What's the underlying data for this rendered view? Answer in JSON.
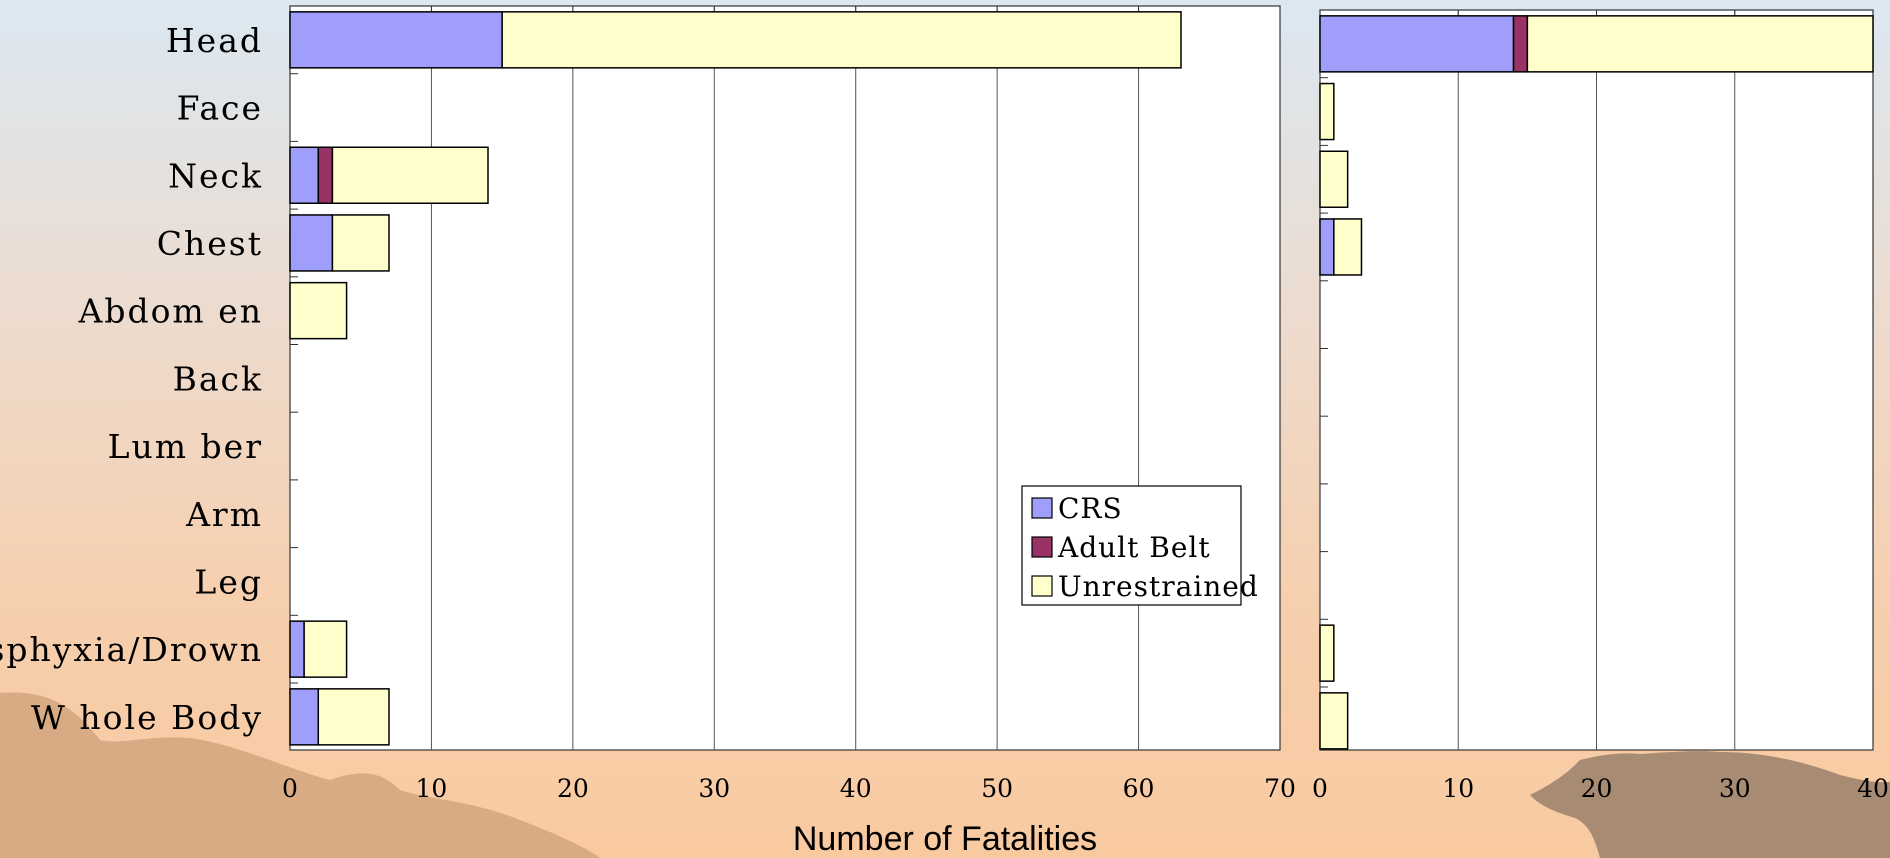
{
  "chart_data": [
    {
      "type": "bar",
      "orientation": "horizontal",
      "stacked": true,
      "categories": [
        "Head",
        "Face",
        "Neck",
        "Chest",
        "Abdom en",
        "Back",
        "Lum ber",
        "Arm",
        "Leg",
        "Asphyxia/Drown",
        "W hole Body"
      ],
      "series": [
        {
          "name": "CRS",
          "values": [
            15,
            0,
            2,
            3,
            0,
            0,
            0,
            0,
            0,
            1,
            2
          ]
        },
        {
          "name": "Adult Belt",
          "values": [
            0,
            0,
            1,
            0,
            0,
            0,
            0,
            0,
            0,
            0,
            0
          ]
        },
        {
          "name": "Unrestrained",
          "values": [
            48,
            0,
            11,
            4,
            4,
            0,
            0,
            0,
            0,
            3,
            5
          ]
        }
      ],
      "xlim": [
        0,
        70
      ],
      "xticks": [
        "0",
        "10",
        "20",
        "30",
        "40",
        "50",
        "60",
        "70"
      ],
      "xlabel": "Number of Fatalities",
      "grid": "vertical",
      "legend": {
        "position": "lower-right",
        "entries": [
          "CRS",
          "Adult Belt",
          "Unrestrained"
        ]
      }
    },
    {
      "type": "bar",
      "orientation": "horizontal",
      "stacked": true,
      "categories": [
        "Head",
        "Face",
        "Neck",
        "Chest",
        "Abdom en",
        "Back",
        "Lum ber",
        "Arm",
        "Leg",
        "Asphyxia/Drown",
        "W hole Body"
      ],
      "series": [
        {
          "values": [
            14,
            0,
            0,
            1,
            0,
            0,
            0,
            0,
            0,
            0,
            0
          ]
        },
        {
          "values": [
            1,
            0,
            0,
            0,
            0,
            0,
            0,
            0,
            0,
            0,
            0
          ]
        },
        {
          "values": [
            25,
            1,
            2,
            2,
            0,
            0,
            0,
            0,
            0,
            1,
            2
          ]
        }
      ],
      "xlim": [
        0,
        40
      ],
      "xticks": [
        "0",
        "10",
        "20",
        "30",
        "40"
      ],
      "grid": "vertical"
    }
  ],
  "colors": {
    "CRS": "#9f9ffb",
    "Adult Belt": "#993366",
    "Unrestrained": "#ffffcc",
    "plot_bg": "#ffffff",
    "grid": "#555555",
    "silhouette": "#d8a882",
    "pagoda": "#a88b73"
  },
  "decor": {
    "background": "sunset gradient with hill and pagoda silhouettes"
  }
}
